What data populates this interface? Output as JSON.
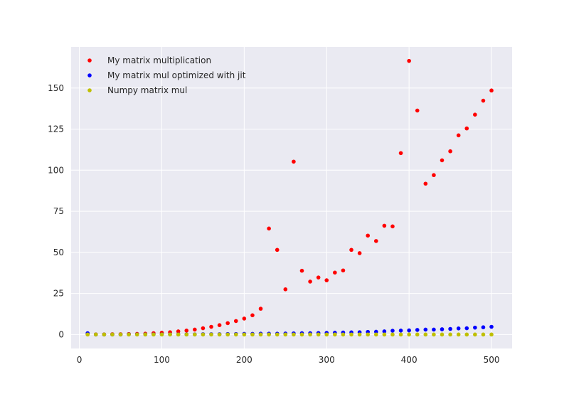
{
  "chart_data": {
    "type": "scatter",
    "title": "",
    "xlabel": "",
    "ylabel": "",
    "xlim": [
      -10,
      525
    ],
    "ylim": [
      -8.5,
      175
    ],
    "xticks": [
      0,
      100,
      200,
      300,
      400,
      500
    ],
    "yticks": [
      0,
      25,
      50,
      75,
      100,
      125,
      150
    ],
    "grid": true,
    "legend_position": "upper-left",
    "x": [
      10,
      20,
      30,
      40,
      50,
      60,
      70,
      80,
      90,
      100,
      110,
      120,
      130,
      140,
      150,
      160,
      170,
      180,
      190,
      200,
      210,
      220,
      230,
      240,
      250,
      260,
      270,
      280,
      290,
      300,
      310,
      320,
      330,
      340,
      350,
      360,
      370,
      380,
      390,
      400,
      410,
      420,
      430,
      440,
      450,
      460,
      470,
      480,
      490,
      500
    ],
    "series": [
      {
        "name": "My matrix multiplication",
        "color": "#ff0000",
        "values": [
          0.1,
          0.1,
          0.1,
          0.2,
          0.2,
          0.3,
          0.4,
          0.5,
          0.8,
          1.1,
          1.4,
          1.9,
          2.4,
          3.0,
          3.8,
          4.7,
          5.7,
          6.9,
          8.2,
          9.7,
          11.7,
          15.7,
          64.5,
          51.5,
          27.5,
          105.2,
          38.8,
          32.2,
          34.7,
          33.0,
          37.7,
          39.0,
          51.5,
          49.5,
          60.2,
          56.9,
          66.2,
          65.8,
          110.4,
          166.5,
          136.3,
          91.8,
          97.0,
          106.0,
          111.5,
          121.2,
          125.4,
          133.8,
          142.3,
          148.5
        ]
      },
      {
        "name": "My matrix mul optimized with jit",
        "color": "#0000ff",
        "values": [
          0.8,
          0.0,
          0.0,
          0.0,
          0.0,
          0.1,
          0.1,
          0.1,
          0.1,
          0.1,
          0.1,
          0.1,
          0.1,
          0.1,
          0.2,
          0.2,
          0.2,
          0.3,
          0.3,
          0.4,
          0.4,
          0.5,
          0.5,
          0.5,
          0.6,
          0.7,
          0.8,
          0.8,
          0.9,
          1.0,
          1.1,
          1.2,
          1.3,
          1.4,
          1.6,
          1.7,
          1.9,
          2.3,
          2.4,
          2.5,
          2.8,
          3.0,
          3.0,
          3.2,
          3.4,
          3.7,
          3.8,
          4.2,
          4.4,
          4.7
        ]
      },
      {
        "name": "Numpy matrix mul",
        "color": "#bfbf00",
        "values": [
          0.0,
          0.0,
          0.0,
          0.0,
          0.0,
          0.0,
          0.0,
          0.0,
          0.0,
          0.0,
          0.0,
          0.0,
          0.0,
          0.0,
          0.0,
          0.0,
          0.0,
          0.0,
          0.0,
          0.0,
          0.0,
          0.0,
          0.0,
          0.0,
          0.0,
          0.0,
          0.0,
          0.0,
          0.0,
          0.0,
          0.0,
          0.0,
          0.0,
          0.0,
          0.0,
          0.0,
          0.0,
          0.0,
          0.0,
          0.0,
          0.0,
          0.0,
          0.0,
          0.0,
          0.0,
          0.0,
          0.0,
          0.0,
          0.0,
          0.0
        ]
      }
    ]
  },
  "colors": {
    "plot_background": "#eaeaf2",
    "grid": "#ffffff",
    "text": "#262626"
  }
}
